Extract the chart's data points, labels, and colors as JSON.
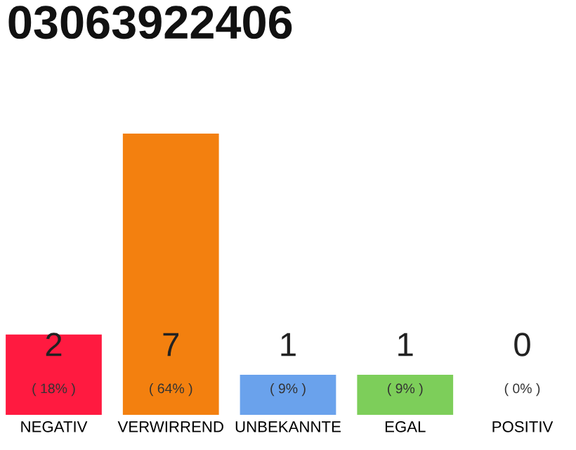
{
  "chart_data": {
    "type": "bar",
    "title": "03063922406",
    "categories": [
      "NEGATIV",
      "VERWIRREND",
      "UNBEKANNTE",
      "EGAL",
      "POSITIV"
    ],
    "values": [
      2,
      7,
      1,
      1,
      0
    ],
    "colors": [
      "#ff1a40",
      "#f3800f",
      "#6aa2ec",
      "#7dce5a",
      "#cccccc"
    ],
    "value_labels": [
      "2\n( 18% )",
      "7\n( 64% )",
      "1\n( 9% )",
      "1\n( 9% )",
      "0\n( 0% )"
    ],
    "grid": false,
    "legend": false
  }
}
